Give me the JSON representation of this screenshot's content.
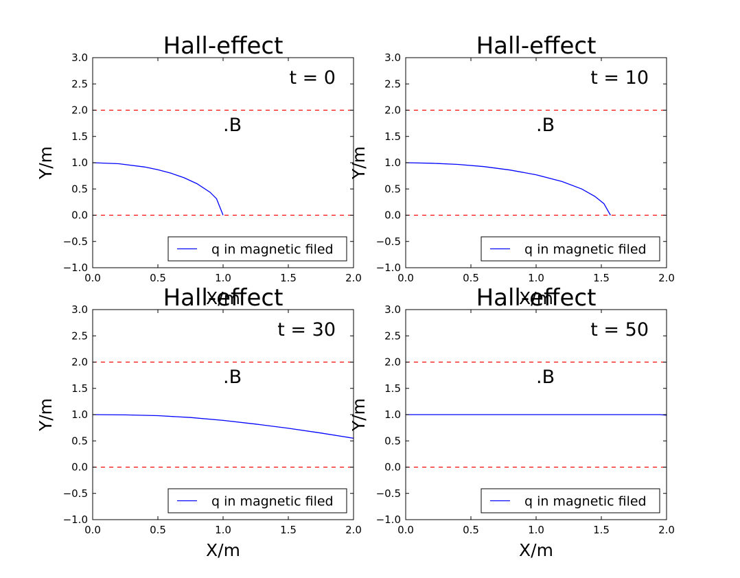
{
  "figure": {
    "colors": {
      "curve": "#0000ff",
      "boundary": "#ff0000",
      "axes": "#000000",
      "background": "#ffffff"
    }
  },
  "chart_data": [
    {
      "type": "line",
      "title": "Hall-effect",
      "xlabel": "X/m",
      "ylabel": "Y/m",
      "xlim": [
        0.0,
        2.0
      ],
      "ylim": [
        -1.0,
        3.0
      ],
      "xticks": [
        "0.0",
        "0.5",
        "1.0",
        "1.5",
        "2.0"
      ],
      "yticks": [
        "−1.0",
        "−0.5",
        "0.0",
        "0.5",
        "1.0",
        "1.5",
        "2.0",
        "2.5",
        "3.0"
      ],
      "time_label": "t = 0",
      "field_label": ".B",
      "boundaries": [
        2.0,
        0.0
      ],
      "legend": {
        "label": "q in magnetic filed",
        "loc": "lower right"
      },
      "series": [
        {
          "name": "q in magnetic filed",
          "x": [
            0.0,
            0.2,
            0.4,
            0.5,
            0.6,
            0.7,
            0.8,
            0.9,
            0.95,
            1.0
          ],
          "y": [
            1.0,
            0.98,
            0.917,
            0.866,
            0.8,
            0.714,
            0.6,
            0.436,
            0.312,
            0.0
          ]
        }
      ]
    },
    {
      "type": "line",
      "title": "Hall-effect",
      "xlabel": "X/m",
      "ylabel": "Y/m",
      "xlim": [
        0.0,
        2.0
      ],
      "ylim": [
        -1.0,
        3.0
      ],
      "xticks": [
        "0.0",
        "0.5",
        "1.0",
        "1.5",
        "2.0"
      ],
      "yticks": [
        "−1.0",
        "−0.5",
        "0.0",
        "0.5",
        "1.0",
        "1.5",
        "2.0",
        "2.5",
        "3.0"
      ],
      "time_label": "t = 10",
      "field_label": ".B",
      "boundaries": [
        2.0,
        0.0
      ],
      "legend": {
        "label": "q in magnetic filed",
        "loc": "lower right"
      },
      "series": [
        {
          "name": "q in magnetic filed",
          "x": [
            0.0,
            0.2,
            0.4,
            0.6,
            0.8,
            1.0,
            1.2,
            1.35,
            1.45,
            1.52,
            1.57
          ],
          "y": [
            1.0,
            0.99,
            0.967,
            0.925,
            0.86,
            0.77,
            0.64,
            0.5,
            0.36,
            0.22,
            0.0
          ]
        }
      ]
    },
    {
      "type": "line",
      "title": "Hall-effect",
      "xlabel": "X/m",
      "ylabel": "Y/m",
      "xlim": [
        0.0,
        2.0
      ],
      "ylim": [
        -1.0,
        3.0
      ],
      "xticks": [
        "0.0",
        "0.5",
        "1.0",
        "1.5",
        "2.0"
      ],
      "yticks": [
        "−1.0",
        "−0.5",
        "0.0",
        "0.5",
        "1.0",
        "1.5",
        "2.0",
        "2.5",
        "3.0"
      ],
      "time_label": "t = 30",
      "field_label": ".B",
      "boundaries": [
        2.0,
        0.0
      ],
      "legend": {
        "label": "q in magnetic filed",
        "loc": "lower right"
      },
      "series": [
        {
          "name": "q in magnetic filed",
          "x": [
            0.0,
            0.25,
            0.5,
            0.75,
            1.0,
            1.25,
            1.5,
            1.75,
            2.0
          ],
          "y": [
            1.0,
            0.995,
            0.98,
            0.945,
            0.89,
            0.82,
            0.74,
            0.65,
            0.55
          ]
        }
      ]
    },
    {
      "type": "line",
      "title": "Hall-effect",
      "xlabel": "X/m",
      "ylabel": "Y/m",
      "xlim": [
        0.0,
        2.0
      ],
      "ylim": [
        -1.0,
        3.0
      ],
      "xticks": [
        "0.0",
        "0.5",
        "1.0",
        "1.5",
        "2.0"
      ],
      "yticks": [
        "−1.0",
        "−0.5",
        "0.0",
        "0.5",
        "1.0",
        "1.5",
        "2.0",
        "2.5",
        "3.0"
      ],
      "time_label": "t = 50",
      "field_label": ".B",
      "boundaries": [
        2.0,
        0.0
      ],
      "legend": {
        "label": "q in magnetic filed",
        "loc": "lower right"
      },
      "series": [
        {
          "name": "q in magnetic filed",
          "x": [
            0.0,
            0.5,
            1.0,
            1.5,
            1.95,
            2.0
          ],
          "y": [
            1.0,
            1.0,
            1.0,
            1.0,
            1.0,
            0.99
          ]
        }
      ]
    }
  ]
}
